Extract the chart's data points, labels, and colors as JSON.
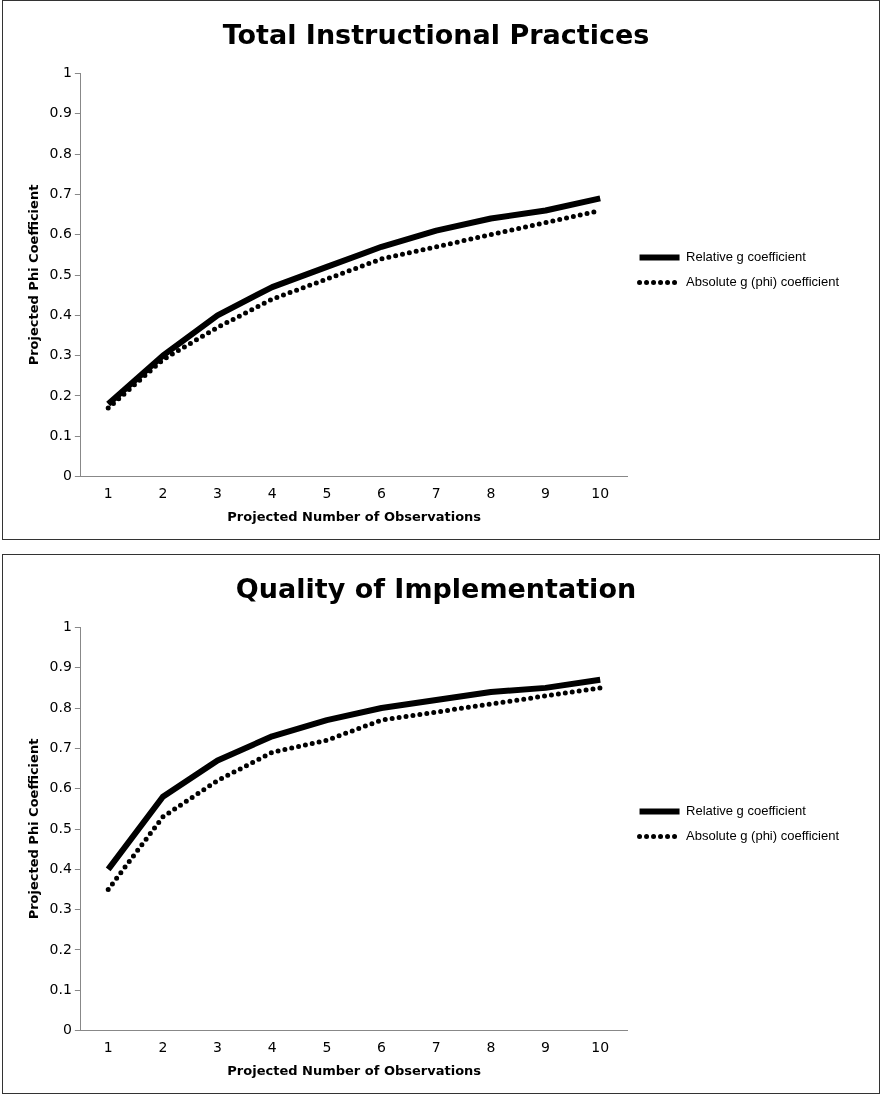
{
  "chart_data": [
    {
      "type": "line",
      "title": "Total Instructional Practices",
      "xlabel": "Projected Number of Observations",
      "ylabel": "Projected Phi Coefficient",
      "categories": [
        "1",
        "2",
        "3",
        "4",
        "5",
        "6",
        "7",
        "8",
        "9",
        "10"
      ],
      "series": [
        {
          "name": "Relative g coefficient",
          "color": "#000000",
          "line_style": "solid",
          "values": [
            0.18,
            0.3,
            0.4,
            0.47,
            0.52,
            0.57,
            0.61,
            0.64,
            0.66,
            0.69
          ]
        },
        {
          "name": "Absolute g (phi) coefficient",
          "color": "#000000",
          "line_style": "dotted",
          "values": [
            0.17,
            0.29,
            0.37,
            0.44,
            0.49,
            0.54,
            0.57,
            0.6,
            0.63,
            0.66
          ]
        }
      ],
      "ylim": [
        0,
        1
      ],
      "yticks": [
        0,
        0.1,
        0.2,
        0.3,
        0.4,
        0.5,
        0.6,
        0.7,
        0.8,
        0.9,
        1
      ],
      "grid": false,
      "legend": "right",
      "marker": "none"
    },
    {
      "type": "line",
      "title": "Quality of Implementation",
      "xlabel": "Projected Number of Observations",
      "ylabel": "Projected Phi Coefficient",
      "categories": [
        "1",
        "2",
        "3",
        "4",
        "5",
        "6",
        "7",
        "8",
        "9",
        "10"
      ],
      "series": [
        {
          "name": "Relative g coefficient",
          "color": "#000000",
          "line_style": "solid",
          "values": [
            0.4,
            0.58,
            0.67,
            0.73,
            0.77,
            0.8,
            0.82,
            0.84,
            0.85,
            0.87
          ]
        },
        {
          "name": "Absolute g (phi) coefficient",
          "color": "#000000",
          "line_style": "dotted",
          "values": [
            0.35,
            0.53,
            0.62,
            0.69,
            0.72,
            0.77,
            0.79,
            0.81,
            0.83,
            0.85
          ]
        }
      ],
      "ylim": [
        0,
        1
      ],
      "yticks": [
        0,
        0.1,
        0.2,
        0.3,
        0.4,
        0.5,
        0.6,
        0.7,
        0.8,
        0.9,
        1
      ],
      "grid": false,
      "legend": "right",
      "marker": "none"
    }
  ]
}
